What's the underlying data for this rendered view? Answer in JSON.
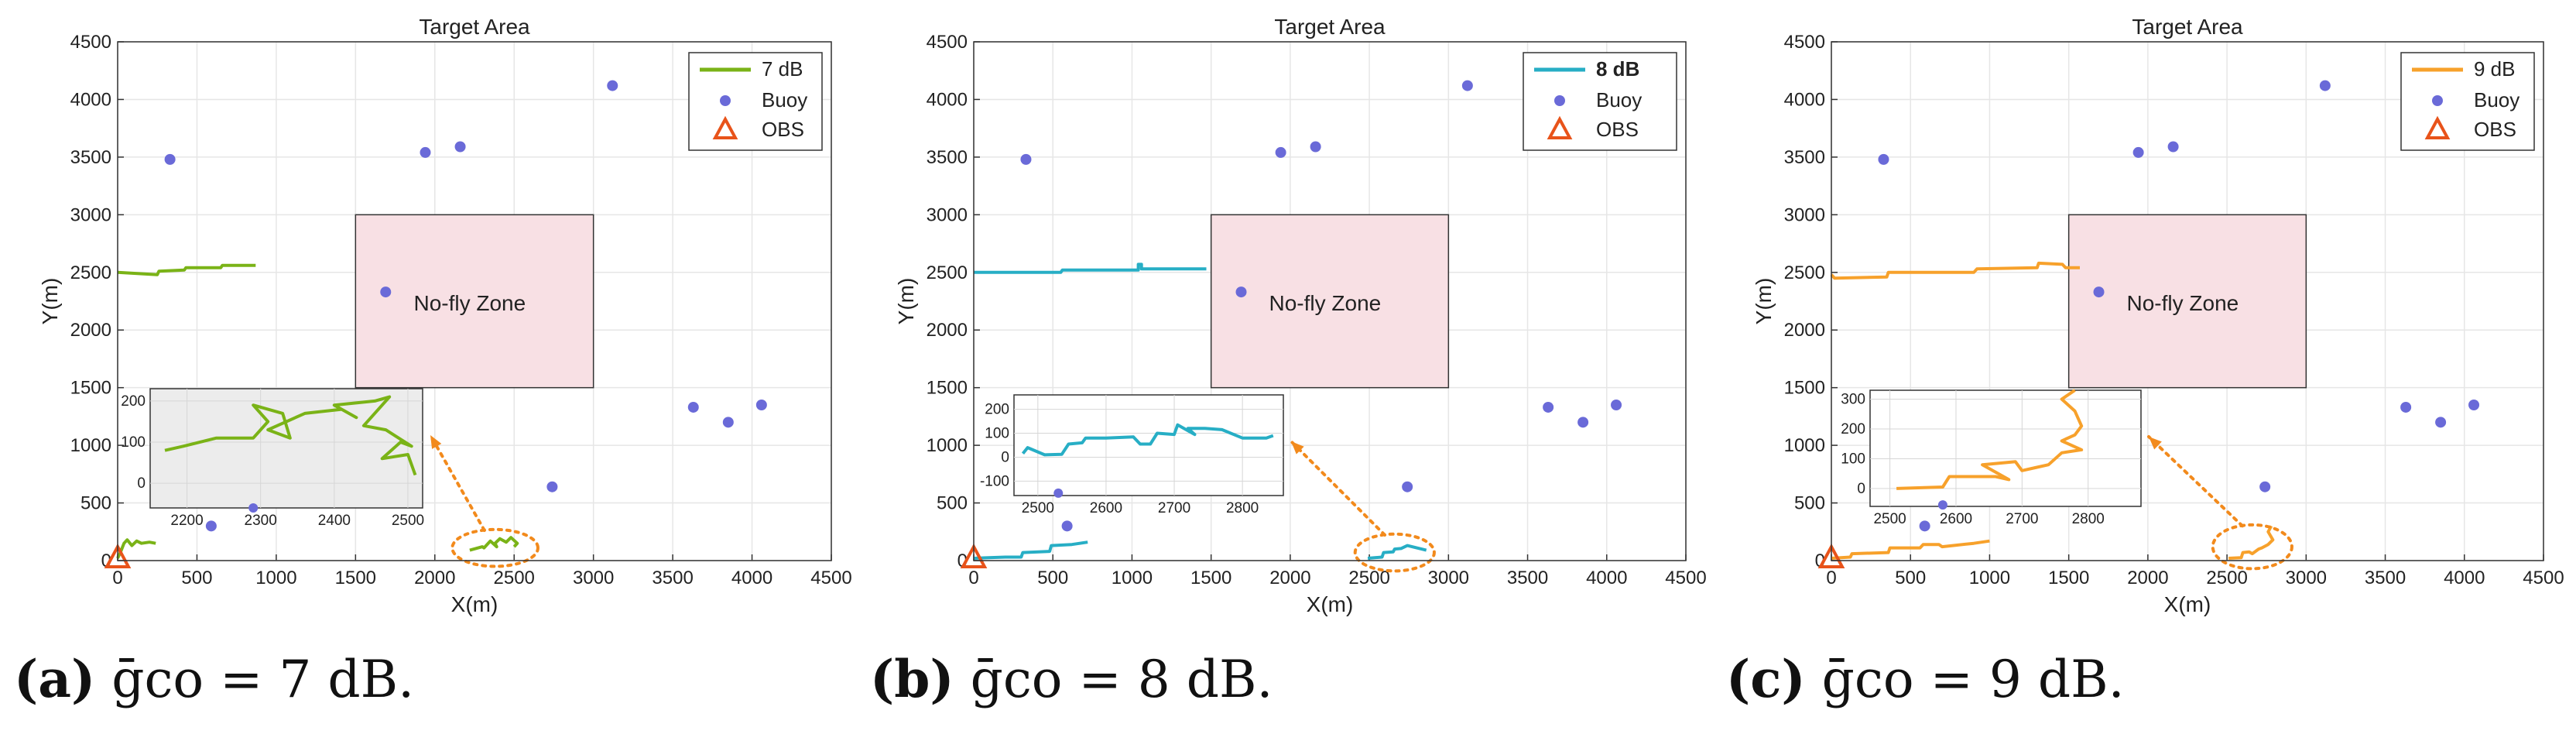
{
  "figure": {
    "captions": [
      {
        "label": "(a)",
        "text": "ḡco = 7 dB."
      },
      {
        "label": "(b)",
        "text": "ḡco = 8 dB."
      },
      {
        "label": "(c)",
        "text": "ḡco = 9 dB."
      }
    ]
  },
  "chart_data": [
    {
      "type": "line",
      "title": "Target Area",
      "xlabel": "X(m)",
      "ylabel": "Y(m)",
      "xlim": [
        0,
        4500
      ],
      "ylim": [
        0,
        4500
      ],
      "xticks": [
        "0",
        "500",
        "1000",
        "1500",
        "2000",
        "2500",
        "3000",
        "3500",
        "4000",
        "4500"
      ],
      "yticks": [
        "0",
        "500",
        "1000",
        "1500",
        "2000",
        "2500",
        "3000",
        "3500",
        "4000",
        "4500"
      ],
      "grid": true,
      "legend": {
        "location": "top-right",
        "entries": [
          "7 dB",
          "Buoy",
          "OBS"
        ]
      },
      "zone": {
        "label": "No-fly Zone",
        "x": [
          1500,
          3000
        ],
        "y": [
          1500,
          3000
        ],
        "color": "#f8e0e4"
      },
      "obs": [
        0,
        20
      ],
      "buoys": [
        [
          330,
          3480
        ],
        [
          1940,
          3540
        ],
        [
          2160,
          3590
        ],
        [
          3120,
          4120
        ],
        [
          1690,
          2330
        ],
        [
          3630,
          1330
        ],
        [
          3850,
          1200
        ],
        [
          4060,
          1350
        ],
        [
          2740,
          640
        ],
        [
          590,
          300
        ]
      ],
      "series": [
        {
          "name": "7 dB",
          "color": "#7ab317",
          "bold_legend": false,
          "x": [
            0,
            250,
            260,
            420,
            430,
            650,
            660,
            870
          ],
          "y": [
            2500,
            2480,
            2510,
            2520,
            2540,
            2540,
            2560,
            2560
          ]
        },
        {
          "name": "7 dB (start)",
          "color": "#7ab317",
          "x": [
            0,
            20,
            40,
            60,
            90,
            120,
            150,
            200,
            240
          ],
          "y": [
            20,
            80,
            150,
            180,
            130,
            170,
            150,
            160,
            150
          ]
        },
        {
          "name": "7 dB (end)",
          "color": "#7ab317",
          "x": [
            2220,
            2300,
            2310,
            2350,
            2390,
            2380,
            2410,
            2450,
            2480,
            2520,
            2500
          ],
          "y": [
            90,
            120,
            110,
            170,
            120,
            150,
            190,
            160,
            200,
            150,
            120
          ]
        }
      ],
      "inset": {
        "xlim": [
          2150,
          2520
        ],
        "ylim": [
          -60,
          230
        ],
        "xticks": [
          "2200",
          "2300",
          "2400",
          "2500"
        ],
        "yticks": [
          "0",
          "100",
          "200"
        ],
        "background": "#ececec",
        "zoom_ellipse": {
          "cx": 2380,
          "cy": 110,
          "rx": 270,
          "ry": 160
        },
        "x": [
          2170,
          2195,
          2240,
          2290,
          2310,
          2290,
          2330,
          2340,
          2310,
          2360,
          2410,
          2430,
          2400,
          2455,
          2475,
          2440,
          2470,
          2505,
          2490,
          2465,
          2500,
          2510
        ],
        "y": [
          80,
          90,
          110,
          110,
          150,
          190,
          170,
          110,
          130,
          170,
          180,
          160,
          190,
          200,
          210,
          140,
          130,
          90,
          100,
          60,
          70,
          20
        ],
        "buoy": [
          2290,
          -60
        ]
      }
    },
    {
      "type": "line",
      "title": "Target Area",
      "xlabel": "X(m)",
      "ylabel": "Y(m)",
      "xlim": [
        0,
        4500
      ],
      "ylim": [
        0,
        4500
      ],
      "xticks": [
        "0",
        "500",
        "1000",
        "1500",
        "2000",
        "2500",
        "3000",
        "3500",
        "4000",
        "4500"
      ],
      "yticks": [
        "0",
        "500",
        "1000",
        "1500",
        "2000",
        "2500",
        "3000",
        "3500",
        "4000",
        "4500"
      ],
      "grid": true,
      "legend": {
        "location": "top-right",
        "entries": [
          "8 dB",
          "Buoy",
          "OBS"
        ]
      },
      "zone": {
        "label": "No-fly Zone",
        "x": [
          1500,
          3000
        ],
        "y": [
          1500,
          3000
        ],
        "color": "#f8e0e4"
      },
      "obs": [
        0,
        20
      ],
      "buoys": [
        [
          330,
          3480
        ],
        [
          1940,
          3540
        ],
        [
          2160,
          3590
        ],
        [
          3120,
          4120
        ],
        [
          1690,
          2330
        ],
        [
          3630,
          1330
        ],
        [
          3850,
          1200
        ],
        [
          4060,
          1350
        ],
        [
          2740,
          640
        ],
        [
          590,
          300
        ]
      ],
      "series": [
        {
          "name": "8 dB",
          "color": "#27aec5",
          "bold_legend": true,
          "x": [
            0,
            550,
            560,
            1040,
            1040,
            1060,
            1060,
            1470
          ],
          "y": [
            2500,
            2500,
            2520,
            2520,
            2570,
            2570,
            2530,
            2530
          ]
        },
        {
          "name": "8 dB (start)",
          "color": "#27aec5",
          "x": [
            0,
            200,
            300,
            310,
            480,
            490,
            620,
            720
          ],
          "y": [
            20,
            30,
            30,
            70,
            80,
            130,
            140,
            160
          ]
        },
        {
          "name": "8 dB (end)",
          "color": "#27aec5",
          "x": [
            2490,
            2580,
            2590,
            2650,
            2660,
            2700,
            2740,
            2800,
            2860
          ],
          "y": [
            20,
            30,
            70,
            75,
            100,
            105,
            130,
            110,
            90
          ]
        }
      ],
      "inset": {
        "xlim": [
          2465,
          2860
        ],
        "ylim": [
          -160,
          260
        ],
        "xticks": [
          "2500",
          "2600",
          "2700",
          "2800"
        ],
        "yticks": [
          "-100",
          "0",
          "100",
          "200"
        ],
        "background": "#ffffff",
        "zoom_ellipse": {
          "cx": 2660,
          "cy": 70,
          "rx": 250,
          "ry": 160
        },
        "x": [
          2478,
          2485,
          2510,
          2535,
          2545,
          2565,
          2570,
          2600,
          2640,
          2650,
          2665,
          2675,
          2700,
          2705,
          2730,
          2720,
          2745,
          2770,
          2800,
          2835,
          2845
        ],
        "y": [
          15,
          40,
          10,
          12,
          55,
          60,
          80,
          80,
          85,
          55,
          55,
          100,
          95,
          135,
          95,
          120,
          120,
          115,
          80,
          80,
          90
        ],
        "buoy": [
          2530,
          -150
        ]
      }
    },
    {
      "type": "line",
      "title": "Target Area",
      "xlabel": "X(m)",
      "ylabel": "Y(m)",
      "xlim": [
        0,
        4500
      ],
      "ylim": [
        0,
        4500
      ],
      "xticks": [
        "0",
        "500",
        "1000",
        "1500",
        "2000",
        "2500",
        "3000",
        "3500",
        "4000",
        "4500"
      ],
      "yticks": [
        "0",
        "500",
        "1000",
        "1500",
        "2000",
        "2500",
        "3000",
        "3500",
        "4000",
        "4500"
      ],
      "grid": true,
      "legend": {
        "location": "top-right",
        "entries": [
          "9 dB",
          "Buoy",
          "OBS"
        ]
      },
      "zone": {
        "label": "No-fly Zone",
        "x": [
          1500,
          3000
        ],
        "y": [
          1500,
          3000
        ],
        "color": "#f8e0e4"
      },
      "obs": [
        0,
        20
      ],
      "buoys": [
        [
          330,
          3480
        ],
        [
          1940,
          3540
        ],
        [
          2160,
          3590
        ],
        [
          3120,
          4120
        ],
        [
          1690,
          2330
        ],
        [
          3630,
          1330
        ],
        [
          3850,
          1200
        ],
        [
          4060,
          1350
        ],
        [
          2740,
          640
        ],
        [
          590,
          300
        ]
      ],
      "series": [
        {
          "name": "9 dB",
          "color": "#f7a12b",
          "bold_legend": false,
          "x": [
            0,
            20,
            350,
            360,
            900,
            920,
            1300,
            1310,
            1460,
            1480,
            1570
          ],
          "y": [
            2480,
            2450,
            2460,
            2500,
            2500,
            2530,
            2540,
            2580,
            2570,
            2540,
            2540
          ]
        },
        {
          "name": "9 dB (start)",
          "color": "#f7a12b",
          "x": [
            0,
            120,
            130,
            360,
            370,
            560,
            580,
            680,
            700,
            900,
            1000
          ],
          "y": [
            20,
            30,
            60,
            70,
            110,
            110,
            140,
            140,
            120,
            150,
            170
          ]
        },
        {
          "name": "9 dB (end)",
          "color": "#f7a12b",
          "x": [
            2510,
            2590,
            2600,
            2640,
            2660,
            2700,
            2720,
            2760,
            2790,
            2760,
            2780
          ],
          "y": [
            20,
            25,
            70,
            75,
            60,
            100,
            110,
            140,
            180,
            250,
            300
          ]
        }
      ],
      "inset": {
        "xlim": [
          2470,
          2880
        ],
        "ylim": [
          -60,
          330
        ],
        "xticks": [
          "2500",
          "2600",
          "2700",
          "2800"
        ],
        "yticks": [
          "0",
          "100",
          "200",
          "300"
        ],
        "background": "#ffffff",
        "zoom_ellipse": {
          "cx": 2660,
          "cy": 120,
          "rx": 250,
          "ry": 190
        },
        "x": [
          2510,
          2580,
          2590,
          2660,
          2680,
          2640,
          2690,
          2700,
          2720,
          2740,
          2760,
          2790,
          2760,
          2780,
          2790,
          2780,
          2760,
          2780
        ],
        "y": [
          0,
          5,
          40,
          40,
          30,
          80,
          90,
          60,
          70,
          80,
          120,
          130,
          160,
          180,
          210,
          260,
          300,
          330
        ],
        "buoy": [
          2580,
          -55
        ]
      }
    }
  ]
}
